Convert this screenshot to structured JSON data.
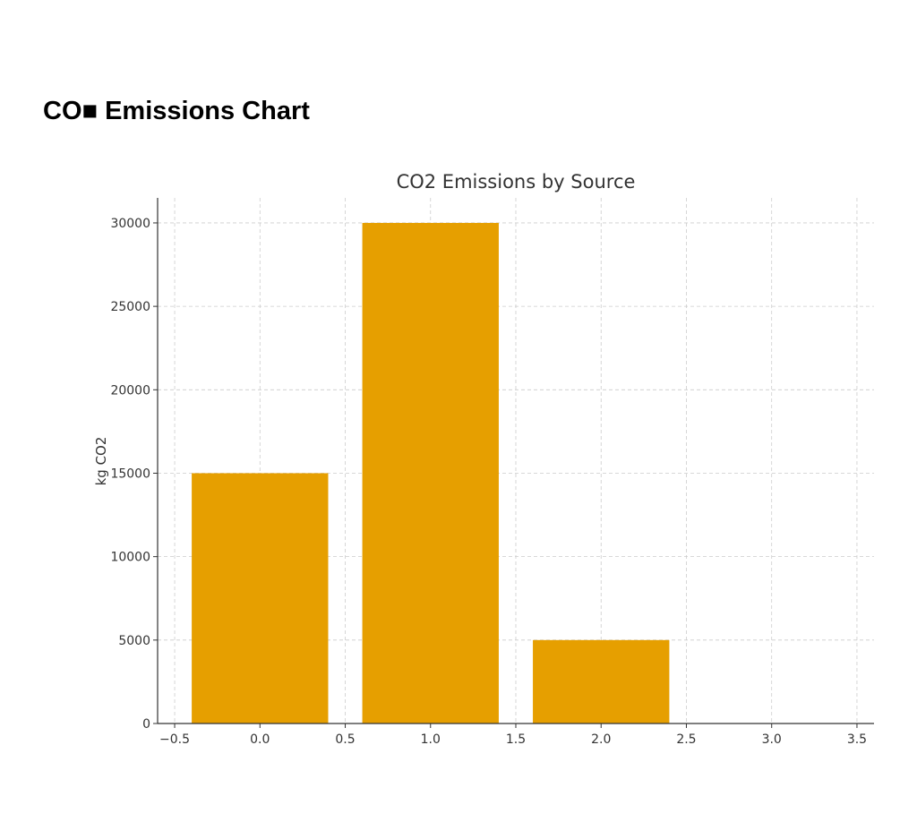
{
  "page": {
    "heading": "CO■ Emissions Chart"
  },
  "chart_data": {
    "type": "bar",
    "title": "CO2 Emissions by Source",
    "xlabel": "",
    "ylabel": "kg CO2",
    "x": [
      0,
      1,
      2,
      3
    ],
    "values": [
      15000,
      30000,
      5000,
      0
    ],
    "bar_width": 0.8,
    "xlim": [
      -0.6,
      3.6
    ],
    "ylim": [
      0,
      31500
    ],
    "xticks": [
      -0.5,
      0.0,
      0.5,
      1.0,
      1.5,
      2.0,
      2.5,
      3.0,
      3.5
    ],
    "xtick_labels": [
      "−0.5",
      "0.0",
      "0.5",
      "1.0",
      "1.5",
      "2.0",
      "2.5",
      "3.0",
      "3.5"
    ],
    "yticks": [
      0,
      5000,
      10000,
      15000,
      20000,
      25000,
      30000
    ],
    "ytick_labels": [
      "0",
      "5000",
      "10000",
      "15000",
      "20000",
      "25000",
      "30000"
    ],
    "grid": true,
    "color": "#E69F00"
  }
}
